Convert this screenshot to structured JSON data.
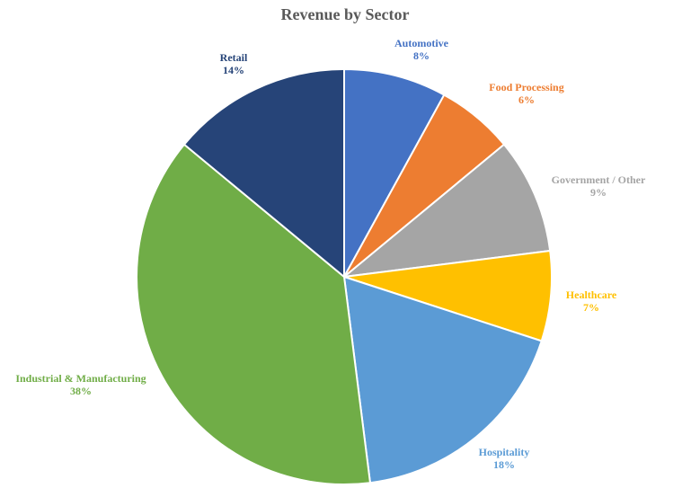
{
  "chart_data": {
    "type": "pie",
    "title": "Revenue by Sector",
    "slices": [
      {
        "label": "Automotive",
        "value": 8,
        "display": "8%",
        "color": "#4472C4"
      },
      {
        "label": "Food Processing",
        "value": 6,
        "display": "6%",
        "color": "#ED7D31"
      },
      {
        "label": "Government / Other",
        "value": 9,
        "display": "9%",
        "color": "#A5A5A5"
      },
      {
        "label": "Healthcare",
        "value": 7,
        "display": "7%",
        "color": "#FFC000"
      },
      {
        "label": "Hospitality",
        "value": 18,
        "display": "18%",
        "color": "#5B9BD5"
      },
      {
        "label": "Industrial & Manufacturing",
        "value": 38,
        "display": "38%",
        "color": "#70AD47"
      },
      {
        "label": "Retail",
        "value": 14,
        "display": "14%",
        "color": "#264478"
      }
    ]
  }
}
